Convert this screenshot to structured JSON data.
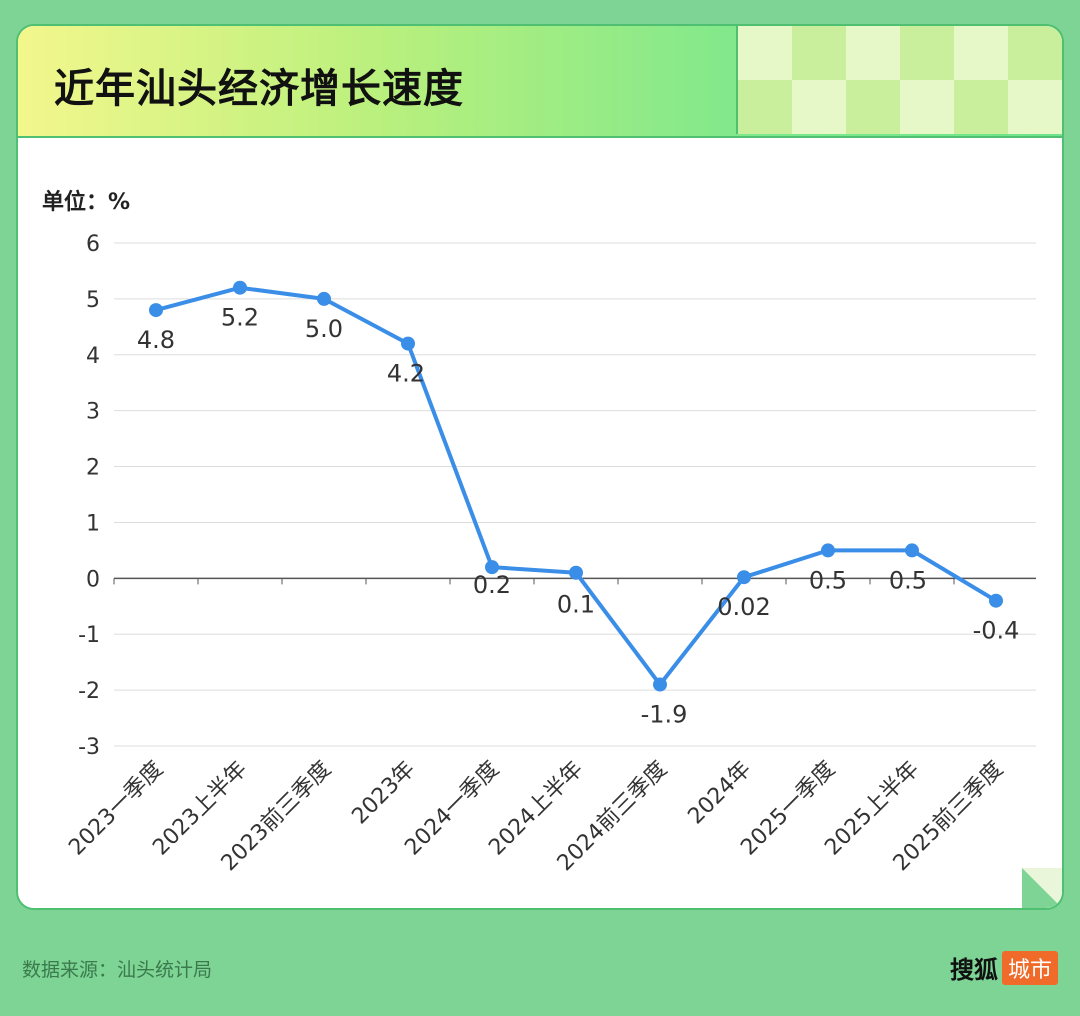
{
  "header": {
    "title": "近年汕头经济增长速度"
  },
  "unit_label": "单位：%",
  "footer": {
    "source": "数据来源：汕头统计局",
    "brand_name": "搜狐",
    "brand_tag": "城市"
  },
  "colors": {
    "line": "#3a8ee8",
    "grid": "#dddddd",
    "zero_axis": "#555555",
    "text": "#333333"
  },
  "chart_data": {
    "type": "line",
    "title": "近年汕头经济增长速度",
    "ylabel": "单位：%",
    "ylim": [
      -3,
      6
    ],
    "yticks": [
      "6",
      "5",
      "4",
      "3",
      "2",
      "1",
      "0",
      "-1",
      "-2",
      "-3"
    ],
    "categories": [
      "2023一季度",
      "2023上半年",
      "2023前三季度",
      "2023年",
      "2024一季度",
      "2024上半年",
      "2024前三季度",
      "2024年",
      "2025一季度",
      "2025上半年",
      "2025前三季度"
    ],
    "values": [
      4.8,
      5.2,
      5.0,
      4.2,
      0.2,
      0.1,
      -1.9,
      0.02,
      0.5,
      0.5,
      -0.4
    ],
    "data_labels": [
      "4.8",
      "5.2",
      "5.0",
      "4.2",
      "0.2",
      "0.1",
      "-1.9",
      "0.02",
      "0.5",
      "0.5",
      "-0.4"
    ],
    "grid": true
  }
}
